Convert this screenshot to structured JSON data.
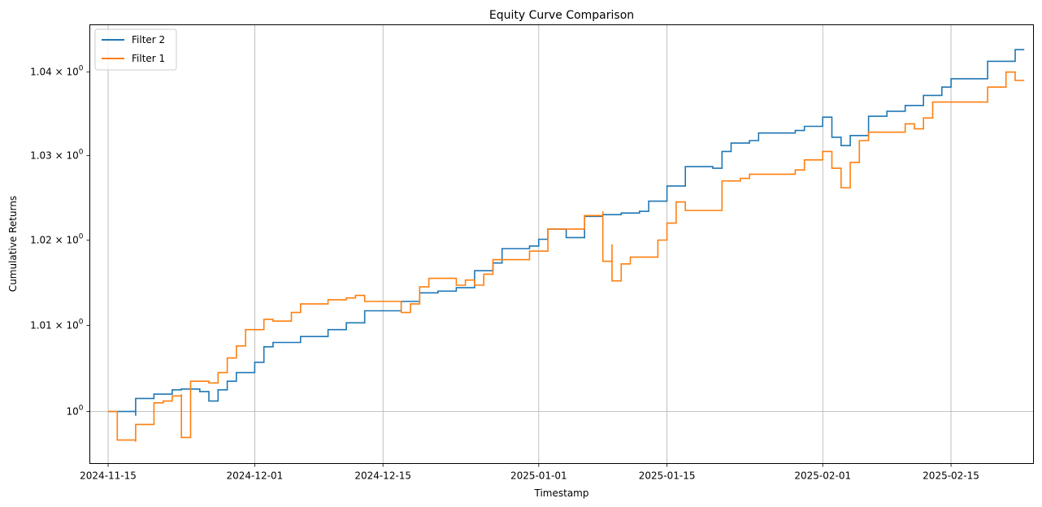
{
  "chart_data": {
    "type": "line",
    "title": "Equity Curve Comparison",
    "xlabel": "Timestamp",
    "ylabel": "Cumulative Returns",
    "y_scale": "log",
    "grid": true,
    "legend_position": "top-left",
    "xlim": [
      "2024-11-13",
      "2025-02-24"
    ],
    "ylim": [
      0.994,
      1.0457
    ],
    "x_ticks": [
      "2024-11-15",
      "2024-12-01",
      "2024-12-15",
      "2025-01-01",
      "2025-01-15",
      "2025-02-01",
      "2025-02-15"
    ],
    "y_ticks": [
      {
        "value": 1.0,
        "base": "10",
        "exp": "0"
      },
      {
        "value": 1.01,
        "base": "1.01 × 10",
        "exp": "0"
      },
      {
        "value": 1.02,
        "base": "1.02 × 10",
        "exp": "0"
      },
      {
        "value": 1.03,
        "base": "1.03 × 10",
        "exp": "0"
      },
      {
        "value": 1.04,
        "base": "1.04 × 10",
        "exp": "0"
      }
    ],
    "series": [
      {
        "name": "Filter 2",
        "color": "#1f77b4",
        "points": [
          [
            "2024-11-15",
            1.0
          ],
          [
            "2024-11-16",
            1.0
          ],
          [
            "2024-11-18",
            0.9995
          ],
          [
            "2024-11-18",
            1.0015
          ],
          [
            "2024-11-20",
            1.0015
          ],
          [
            "2024-11-20",
            1.002
          ],
          [
            "2024-11-21",
            1.002
          ],
          [
            "2024-11-22",
            1.0025
          ],
          [
            "2024-11-23",
            1.0026
          ],
          [
            "2024-11-25",
            1.0023
          ],
          [
            "2024-11-26",
            1.0022
          ],
          [
            "2024-11-26",
            1.0012
          ],
          [
            "2024-11-27",
            1.0025
          ],
          [
            "2024-11-28",
            1.0035
          ],
          [
            "2024-11-29",
            1.0045
          ],
          [
            "2024-12-01",
            1.0057
          ],
          [
            "2024-12-02",
            1.0075
          ],
          [
            "2024-12-03",
            1.008
          ],
          [
            "2024-12-05",
            1.008
          ],
          [
            "2024-12-06",
            1.0087
          ],
          [
            "2024-12-08",
            1.0087
          ],
          [
            "2024-12-09",
            1.0095
          ],
          [
            "2024-12-11",
            1.0103
          ],
          [
            "2024-12-13",
            1.0117
          ],
          [
            "2024-12-16",
            1.0117
          ],
          [
            "2024-12-17",
            1.0128
          ],
          [
            "2024-12-19",
            1.0138
          ],
          [
            "2024-12-21",
            1.014
          ],
          [
            "2024-12-23",
            1.0144
          ],
          [
            "2024-12-25",
            1.0164
          ],
          [
            "2024-12-27",
            1.0173
          ],
          [
            "2024-12-28",
            1.019
          ],
          [
            "2024-12-31",
            1.0193
          ],
          [
            "2025-01-01",
            1.0201
          ],
          [
            "2025-01-02",
            1.0213
          ],
          [
            "2025-01-04",
            1.0203
          ],
          [
            "2025-01-06",
            1.0228
          ],
          [
            "2025-01-08",
            1.023
          ],
          [
            "2025-01-10",
            1.0232
          ],
          [
            "2025-01-12",
            1.0234
          ],
          [
            "2025-01-13",
            1.0246
          ],
          [
            "2025-01-15",
            1.0264
          ],
          [
            "2025-01-17",
            1.0287
          ],
          [
            "2025-01-20",
            1.0285
          ],
          [
            "2025-01-21",
            1.0305
          ],
          [
            "2025-01-22",
            1.0315
          ],
          [
            "2025-01-24",
            1.0318
          ],
          [
            "2025-01-25",
            1.0327
          ],
          [
            "2025-01-29",
            1.033
          ],
          [
            "2025-01-30",
            1.0335
          ],
          [
            "2025-02-01",
            1.0346
          ],
          [
            "2025-02-02",
            1.0322
          ],
          [
            "2025-02-03",
            1.0312
          ],
          [
            "2025-02-04",
            1.0324
          ],
          [
            "2025-02-06",
            1.0347
          ],
          [
            "2025-02-08",
            1.0353
          ],
          [
            "2025-02-10",
            1.036
          ],
          [
            "2025-02-12",
            1.0372
          ],
          [
            "2025-02-14",
            1.0382
          ],
          [
            "2025-02-15",
            1.0392
          ],
          [
            "2025-02-18",
            1.0392
          ],
          [
            "2025-02-19",
            1.0413
          ],
          [
            "2025-02-21",
            1.0413
          ],
          [
            "2025-02-22",
            1.0427
          ],
          [
            "2025-02-23",
            1.0427
          ]
        ]
      },
      {
        "name": "Filter 1",
        "color": "#ff7f0e",
        "points": [
          [
            "2024-11-15",
            1.0
          ],
          [
            "2024-11-16",
            1.0
          ],
          [
            "2024-11-16",
            0.9967
          ],
          [
            "2024-11-18",
            0.9965
          ],
          [
            "2024-11-18",
            0.9985
          ],
          [
            "2024-11-20",
            0.9985
          ],
          [
            "2024-11-20",
            1.001
          ],
          [
            "2024-11-21",
            1.0012
          ],
          [
            "2024-11-22",
            1.0018
          ],
          [
            "2024-11-23",
            1.002
          ],
          [
            "2024-11-23",
            0.997
          ],
          [
            "2024-11-24",
            1.0035
          ],
          [
            "2024-11-26",
            1.0033
          ],
          [
            "2024-11-27",
            1.0045
          ],
          [
            "2024-11-28",
            1.0062
          ],
          [
            "2024-11-29",
            1.0076
          ],
          [
            "2024-11-30",
            1.0095
          ],
          [
            "2024-12-02",
            1.0095
          ],
          [
            "2024-12-02",
            1.0107
          ],
          [
            "2024-12-03",
            1.0105
          ],
          [
            "2024-12-05",
            1.0115
          ],
          [
            "2024-12-06",
            1.0125
          ],
          [
            "2024-12-08",
            1.0125
          ],
          [
            "2024-12-09",
            1.013
          ],
          [
            "2024-12-11",
            1.0132
          ],
          [
            "2024-12-12",
            1.0135
          ],
          [
            "2024-12-13",
            1.0128
          ],
          [
            "2024-12-16",
            1.0128
          ],
          [
            "2024-12-17",
            1.0115
          ],
          [
            "2024-12-18",
            1.0125
          ],
          [
            "2024-12-19",
            1.0145
          ],
          [
            "2024-12-20",
            1.0155
          ],
          [
            "2024-12-23",
            1.0147
          ],
          [
            "2024-12-24",
            1.0153
          ],
          [
            "2024-12-25",
            1.0147
          ],
          [
            "2024-12-26",
            1.016
          ],
          [
            "2024-12-27",
            1.0177
          ],
          [
            "2024-12-30",
            1.0177
          ],
          [
            "2024-12-31",
            1.0187
          ],
          [
            "2025-01-02",
            1.0187
          ],
          [
            "2025-01-02",
            1.0213
          ],
          [
            "2025-01-04",
            1.0213
          ],
          [
            "2025-01-06",
            1.0229
          ],
          [
            "2025-01-08",
            1.0234
          ],
          [
            "2025-01-08",
            1.0175
          ],
          [
            "2025-01-09",
            1.0195
          ],
          [
            "2025-01-09",
            1.0152
          ],
          [
            "2025-01-10",
            1.0172
          ],
          [
            "2025-01-11",
            1.018
          ],
          [
            "2025-01-13",
            1.018
          ],
          [
            "2025-01-14",
            1.02
          ],
          [
            "2025-01-15",
            1.022
          ],
          [
            "2025-01-16",
            1.0245
          ],
          [
            "2025-01-17",
            1.0235
          ],
          [
            "2025-01-20",
            1.0235
          ],
          [
            "2025-01-21",
            1.027
          ],
          [
            "2025-01-23",
            1.0273
          ],
          [
            "2025-01-24",
            1.0278
          ],
          [
            "2025-01-28",
            1.0278
          ],
          [
            "2025-01-29",
            1.0283
          ],
          [
            "2025-01-30",
            1.0295
          ],
          [
            "2025-02-01",
            1.0305
          ],
          [
            "2025-02-02",
            1.0285
          ],
          [
            "2025-02-03",
            1.0262
          ],
          [
            "2025-02-04",
            1.0292
          ],
          [
            "2025-02-05",
            1.0318
          ],
          [
            "2025-02-06",
            1.0328
          ],
          [
            "2025-02-08",
            1.0328
          ],
          [
            "2025-02-10",
            1.0338
          ],
          [
            "2025-02-11",
            1.0332
          ],
          [
            "2025-02-12",
            1.0345
          ],
          [
            "2025-02-13",
            1.0364
          ],
          [
            "2025-02-16",
            1.0364
          ],
          [
            "2025-02-19",
            1.0382
          ],
          [
            "2025-02-21",
            1.0385
          ],
          [
            "2025-02-21",
            1.04
          ],
          [
            "2025-02-22",
            1.039
          ],
          [
            "2025-02-23",
            1.039
          ]
        ]
      }
    ]
  }
}
